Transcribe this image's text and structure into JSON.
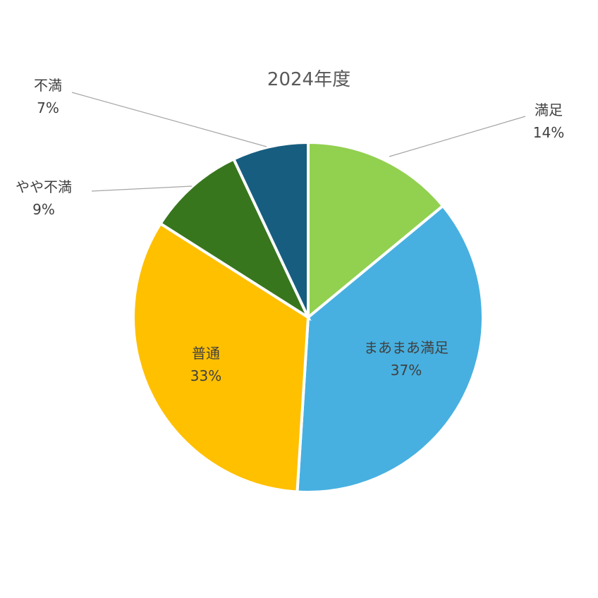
{
  "chart_data": {
    "type": "pie",
    "title": "2024年度",
    "slices": [
      {
        "label": "満足",
        "value": 14,
        "value_label": "14%",
        "color": "#92D050"
      },
      {
        "label": "まあまあ満足",
        "value": 37,
        "value_label": "37%",
        "color": "#47B0E0"
      },
      {
        "label": "普通",
        "value": 33,
        "value_label": "33%",
        "color": "#FFC000"
      },
      {
        "label": "やや不満",
        "value": 9,
        "value_label": "9%",
        "color": "#38761D"
      },
      {
        "label": "不満",
        "value": 7,
        "value_label": "7%",
        "color": "#175D80"
      }
    ],
    "start_angle": "top (12 o'clock)",
    "direction": "clockwise",
    "legend": "none"
  }
}
